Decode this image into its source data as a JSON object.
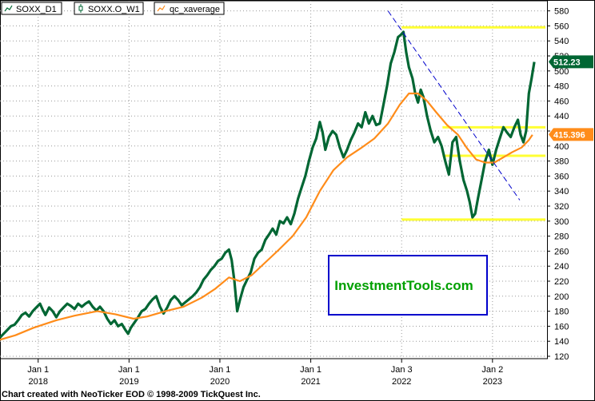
{
  "chart_data": {
    "type": "line",
    "legend": [
      {
        "name": "SOXX_D1",
        "color": "#006633",
        "icon": "line-icon"
      },
      {
        "name": "SOXX.O_W1",
        "color": "#006633",
        "icon": "candle-icon"
      },
      {
        "name": "qc_xaverage",
        "color": "#ff8c1a",
        "icon": "line-icon"
      }
    ],
    "x_ticks": [
      {
        "year": 2018,
        "label1": "Jan 1",
        "label2": "2018"
      },
      {
        "year": 2019,
        "label1": "Jan 1",
        "label2": "2019"
      },
      {
        "year": 2020,
        "label1": "Jan 1",
        "label2": "2020"
      },
      {
        "year": 2021,
        "label1": "Jan 1",
        "label2": "2021"
      },
      {
        "year": 2022,
        "label1": "Jan 3",
        "label2": "2022"
      },
      {
        "year": 2023,
        "label1": "Jan 2",
        "label2": "2023"
      }
    ],
    "x_range": [
      2017.58,
      2023.6
    ],
    "y_ticks": [
      120,
      140,
      160,
      180,
      200,
      220,
      240,
      260,
      280,
      300,
      320,
      340,
      360,
      380,
      400,
      420,
      440,
      460,
      480,
      500,
      520,
      540,
      560,
      580
    ],
    "ylim": [
      120,
      590
    ],
    "grid": true,
    "price_series": {
      "name": "SOXX_D1",
      "color": "#006633",
      "points": [
        [
          2017.58,
          145
        ],
        [
          2017.62,
          150
        ],
        [
          2017.66,
          155
        ],
        [
          2017.7,
          160
        ],
        [
          2017.74,
          162
        ],
        [
          2017.78,
          168
        ],
        [
          2017.82,
          175
        ],
        [
          2017.86,
          178
        ],
        [
          2017.9,
          173
        ],
        [
          2017.94,
          180
        ],
        [
          2017.98,
          185
        ],
        [
          2018.02,
          190
        ],
        [
          2018.05,
          182
        ],
        [
          2018.08,
          175
        ],
        [
          2018.12,
          185
        ],
        [
          2018.16,
          180
        ],
        [
          2018.2,
          172
        ],
        [
          2018.24,
          180
        ],
        [
          2018.28,
          185
        ],
        [
          2018.32,
          190
        ],
        [
          2018.36,
          187
        ],
        [
          2018.4,
          183
        ],
        [
          2018.44,
          190
        ],
        [
          2018.48,
          186
        ],
        [
          2018.52,
          190
        ],
        [
          2018.56,
          193
        ],
        [
          2018.6,
          186
        ],
        [
          2018.64,
          181
        ],
        [
          2018.68,
          186
        ],
        [
          2018.72,
          180
        ],
        [
          2018.76,
          170
        ],
        [
          2018.8,
          163
        ],
        [
          2018.84,
          168
        ],
        [
          2018.88,
          160
        ],
        [
          2018.92,
          163
        ],
        [
          2018.96,
          155
        ],
        [
          2018.99,
          150
        ],
        [
          2019.02,
          158
        ],
        [
          2019.06,
          165
        ],
        [
          2019.1,
          172
        ],
        [
          2019.14,
          180
        ],
        [
          2019.18,
          183
        ],
        [
          2019.22,
          190
        ],
        [
          2019.26,
          196
        ],
        [
          2019.3,
          200
        ],
        [
          2019.34,
          186
        ],
        [
          2019.38,
          177
        ],
        [
          2019.42,
          185
        ],
        [
          2019.46,
          195
        ],
        [
          2019.5,
          200
        ],
        [
          2019.54,
          195
        ],
        [
          2019.58,
          188
        ],
        [
          2019.62,
          192
        ],
        [
          2019.66,
          196
        ],
        [
          2019.7,
          200
        ],
        [
          2019.74,
          205
        ],
        [
          2019.78,
          212
        ],
        [
          2019.82,
          222
        ],
        [
          2019.86,
          228
        ],
        [
          2019.9,
          235
        ],
        [
          2019.94,
          240
        ],
        [
          2019.98,
          247
        ],
        [
          2020.02,
          250
        ],
        [
          2020.06,
          258
        ],
        [
          2020.1,
          262
        ],
        [
          2020.13,
          248
        ],
        [
          2020.16,
          220
        ],
        [
          2020.19,
          180
        ],
        [
          2020.22,
          195
        ],
        [
          2020.26,
          212
        ],
        [
          2020.3,
          222
        ],
        [
          2020.34,
          232
        ],
        [
          2020.38,
          250
        ],
        [
          2020.42,
          258
        ],
        [
          2020.46,
          262
        ],
        [
          2020.5,
          275
        ],
        [
          2020.54,
          282
        ],
        [
          2020.58,
          290
        ],
        [
          2020.62,
          282
        ],
        [
          2020.66,
          300
        ],
        [
          2020.7,
          297
        ],
        [
          2020.74,
          305
        ],
        [
          2020.78,
          296
        ],
        [
          2020.82,
          310
        ],
        [
          2020.86,
          330
        ],
        [
          2020.9,
          345
        ],
        [
          2020.94,
          360
        ],
        [
          2020.98,
          380
        ],
        [
          2021.02,
          398
        ],
        [
          2021.06,
          410
        ],
        [
          2021.1,
          432
        ],
        [
          2021.13,
          418
        ],
        [
          2021.16,
          395
        ],
        [
          2021.2,
          412
        ],
        [
          2021.24,
          420
        ],
        [
          2021.28,
          415
        ],
        [
          2021.32,
          398
        ],
        [
          2021.36,
          385
        ],
        [
          2021.4,
          395
        ],
        [
          2021.44,
          408
        ],
        [
          2021.48,
          418
        ],
        [
          2021.52,
          430
        ],
        [
          2021.56,
          425
        ],
        [
          2021.6,
          445
        ],
        [
          2021.64,
          430
        ],
        [
          2021.68,
          440
        ],
        [
          2021.72,
          428
        ],
        [
          2021.76,
          430
        ],
        [
          2021.8,
          455
        ],
        [
          2021.84,
          480
        ],
        [
          2021.88,
          510
        ],
        [
          2021.92,
          525
        ],
        [
          2021.96,
          545
        ],
        [
          2021.99,
          548
        ],
        [
          2022.02,
          552
        ],
        [
          2022.05,
          525
        ],
        [
          2022.08,
          505
        ],
        [
          2022.12,
          490
        ],
        [
          2022.15,
          470
        ],
        [
          2022.18,
          458
        ],
        [
          2022.21,
          475
        ],
        [
          2022.24,
          465
        ],
        [
          2022.28,
          440
        ],
        [
          2022.32,
          420
        ],
        [
          2022.36,
          405
        ],
        [
          2022.4,
          412
        ],
        [
          2022.44,
          400
        ],
        [
          2022.48,
          380
        ],
        [
          2022.52,
          362
        ],
        [
          2022.56,
          405
        ],
        [
          2022.6,
          412
        ],
        [
          2022.64,
          380
        ],
        [
          2022.68,
          355
        ],
        [
          2022.72,
          340
        ],
        [
          2022.75,
          325
        ],
        [
          2022.78,
          305
        ],
        [
          2022.81,
          310
        ],
        [
          2022.84,
          330
        ],
        [
          2022.88,
          355
        ],
        [
          2022.92,
          380
        ],
        [
          2022.96,
          395
        ],
        [
          2023.0,
          375
        ],
        [
          2023.04,
          395
        ],
        [
          2023.08,
          410
        ],
        [
          2023.12,
          425
        ],
        [
          2023.16,
          418
        ],
        [
          2023.2,
          412
        ],
        [
          2023.24,
          425
        ],
        [
          2023.28,
          435
        ],
        [
          2023.31,
          415
        ],
        [
          2023.34,
          405
        ],
        [
          2023.37,
          420
        ],
        [
          2023.4,
          470
        ],
        [
          2023.43,
          490
        ],
        [
          2023.46,
          512
        ]
      ]
    },
    "ema_series": {
      "name": "qc_xaverage",
      "color": "#ff8c1a",
      "points": [
        [
          2017.58,
          142
        ],
        [
          2017.75,
          148
        ],
        [
          2017.95,
          158
        ],
        [
          2018.2,
          168
        ],
        [
          2018.4,
          174
        ],
        [
          2018.65,
          180
        ],
        [
          2018.85,
          176
        ],
        [
          2019.05,
          170
        ],
        [
          2019.2,
          173
        ],
        [
          2019.4,
          180
        ],
        [
          2019.6,
          186
        ],
        [
          2019.8,
          198
        ],
        [
          2019.95,
          210
        ],
        [
          2020.1,
          225
        ],
        [
          2020.22,
          220
        ],
        [
          2020.35,
          228
        ],
        [
          2020.5,
          245
        ],
        [
          2020.65,
          262
        ],
        [
          2020.8,
          280
        ],
        [
          2020.95,
          305
        ],
        [
          2021.1,
          340
        ],
        [
          2021.25,
          368
        ],
        [
          2021.4,
          385
        ],
        [
          2021.55,
          397
        ],
        [
          2021.7,
          410
        ],
        [
          2021.85,
          430
        ],
        [
          2021.98,
          455
        ],
        [
          2022.08,
          470
        ],
        [
          2022.18,
          470
        ],
        [
          2022.28,
          460
        ],
        [
          2022.38,
          445
        ],
        [
          2022.5,
          428
        ],
        [
          2022.62,
          415
        ],
        [
          2022.72,
          397
        ],
        [
          2022.82,
          382
        ],
        [
          2022.92,
          378
        ],
        [
          2023.02,
          378
        ],
        [
          2023.12,
          385
        ],
        [
          2023.22,
          392
        ],
        [
          2023.32,
          398
        ],
        [
          2023.4,
          408
        ],
        [
          2023.44,
          415
        ]
      ]
    },
    "horizontal_lines": [
      {
        "name": "resistance-560",
        "y": 558,
        "x_from": 2022.0,
        "x_to": 2023.6,
        "color": "#ffff33"
      },
      {
        "name": "level-425",
        "y": 425,
        "x_from": 2022.45,
        "x_to": 2023.6,
        "color": "#ffff33"
      },
      {
        "name": "level-387",
        "y": 387,
        "x_from": 2022.45,
        "x_to": 2023.6,
        "color": "#ffff33"
      },
      {
        "name": "support-302",
        "y": 302,
        "x_from": 2022.0,
        "x_to": 2023.6,
        "color": "#ffff33"
      }
    ],
    "trendline": {
      "x1": 2021.85,
      "y1": 580,
      "x2": 2023.3,
      "y2": 328,
      "color": "#0000cc"
    },
    "last_price": {
      "value": "512.23",
      "color": "#006633"
    },
    "average_value": {
      "value": "415.396",
      "color": "#ff8c1a"
    }
  },
  "watermark": "InvestmentTools.com",
  "footer": "Chart created with NeoTicker EOD © 1998-2009 TickQuest Inc."
}
